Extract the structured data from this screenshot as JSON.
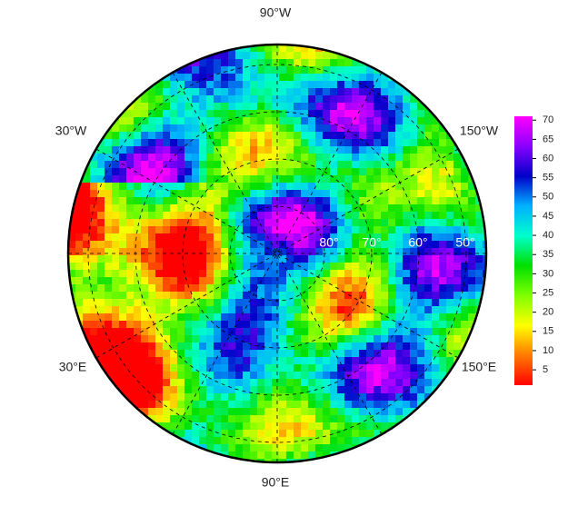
{
  "map": {
    "longitude_labels": [
      "90°W",
      "30°W",
      "150°W",
      "30°E",
      "150°E",
      "90°E"
    ],
    "latitude_labels": [
      "80°",
      "70°",
      "60°",
      "50°"
    ]
  },
  "colorbar": {
    "range": [
      1,
      71
    ],
    "ticks": [
      5,
      10,
      15,
      20,
      25,
      30,
      35,
      40,
      45,
      50,
      55,
      60,
      65,
      70
    ],
    "colors": [
      "#ff0000",
      "#ff7a00",
      "#ffff00",
      "#7fff00",
      "#00e000",
      "#00ffcc",
      "#00b0ff",
      "#0000c8",
      "#8a00ff",
      "#ff00ff"
    ]
  }
}
